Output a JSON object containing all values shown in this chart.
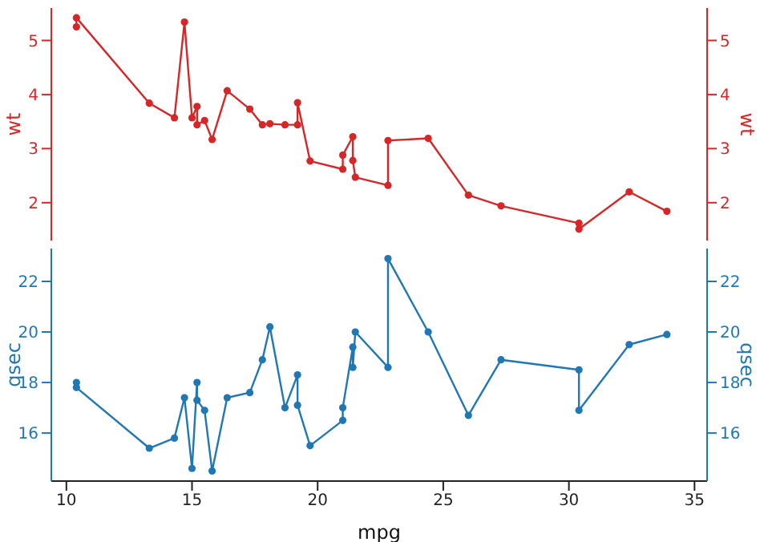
{
  "chart_data": [
    {
      "type": "line",
      "ylabel": "wt",
      "y2label": "wt",
      "xlim": [
        9.4,
        35.5
      ],
      "xticks": [
        10,
        15,
        20,
        25,
        30,
        35
      ],
      "ylim": [
        1.3,
        5.6
      ],
      "yticks": [
        2,
        3,
        4,
        5
      ],
      "y2lim": [
        1.3,
        5.6
      ],
      "y2ticks": [
        2,
        3,
        4,
        5
      ],
      "tick_labels": "y",
      "marker": "circle",
      "x": [
        10.4,
        10.4,
        13.3,
        14.3,
        14.7,
        15.0,
        15.2,
        15.2,
        15.5,
        15.8,
        16.4,
        17.3,
        17.8,
        18.1,
        18.7,
        19.2,
        19.2,
        19.7,
        21.0,
        21.0,
        21.4,
        21.4,
        21.5,
        22.8,
        22.8,
        24.4,
        26.0,
        27.3,
        30.4,
        30.4,
        32.4,
        33.9
      ],
      "series": [
        {
          "color": "#d62728",
          "values": [
            5.25,
            5.42,
            3.84,
            3.57,
            5.34,
            3.57,
            3.78,
            3.44,
            3.52,
            3.17,
            4.07,
            3.73,
            3.44,
            3.46,
            3.44,
            3.44,
            3.85,
            2.77,
            2.62,
            2.88,
            3.22,
            2.78,
            2.47,
            2.32,
            3.15,
            3.19,
            2.14,
            1.94,
            1.62,
            1.51,
            2.2,
            1.84
          ]
        }
      ]
    },
    {
      "type": "line",
      "xlabel": "mpg",
      "ylabel": "qsec",
      "y2label": "qsec",
      "xlim": [
        9.4,
        35.5
      ],
      "xticks": [
        10,
        15,
        20,
        25,
        30,
        35
      ],
      "ylim": [
        14.1,
        23.3
      ],
      "yticks": [
        16,
        18,
        20,
        22
      ],
      "y2lim": [
        14.1,
        23.3
      ],
      "y2ticks": [
        16,
        18,
        20,
        22
      ],
      "marker": "circle",
      "x": [
        10.4,
        10.4,
        13.3,
        14.3,
        14.7,
        15.0,
        15.2,
        15.2,
        15.5,
        15.8,
        16.4,
        17.3,
        17.8,
        18.1,
        18.7,
        19.2,
        19.2,
        19.7,
        21.0,
        21.0,
        21.4,
        21.4,
        21.5,
        22.8,
        22.8,
        24.4,
        26.0,
        27.3,
        30.4,
        30.4,
        32.4,
        33.9
      ],
      "series": [
        {
          "color": "#1f77b4",
          "values": [
            18.0,
            17.8,
            15.4,
            15.8,
            17.4,
            14.6,
            18.0,
            17.3,
            16.9,
            14.5,
            17.4,
            17.6,
            18.9,
            20.2,
            17.0,
            18.3,
            17.1,
            15.5,
            16.5,
            17.0,
            19.4,
            18.6,
            20.0,
            18.6,
            22.9,
            20.0,
            16.7,
            18.9,
            18.5,
            16.9,
            19.5,
            19.9
          ]
        }
      ]
    }
  ]
}
